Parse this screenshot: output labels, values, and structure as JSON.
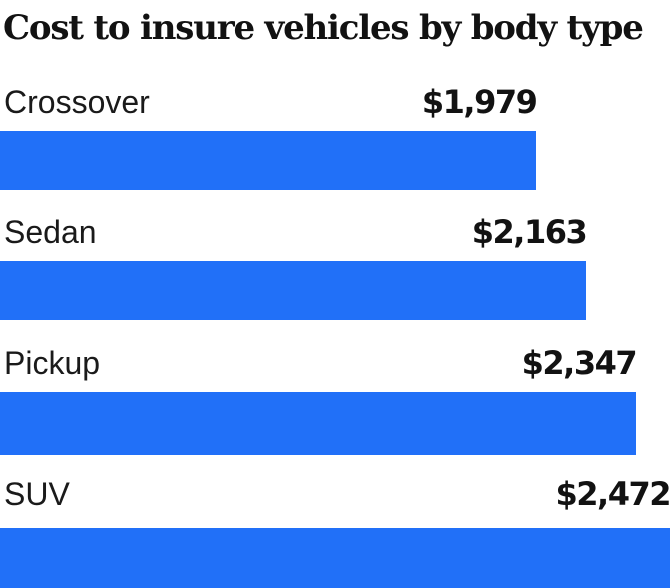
{
  "title": "Cost to insure vehicles by body type",
  "colors": {
    "bar": "#2170f8",
    "title_text": "#121212",
    "label_text": "#1a1a1a",
    "background": "#ffffff"
  },
  "chart_data": {
    "type": "bar",
    "orientation": "horizontal",
    "title": "Cost to insure vehicles by body type",
    "categories": [
      "Crossover",
      "Sedan",
      "Pickup",
      "SUV"
    ],
    "values": [
      1979,
      2163,
      2347,
      2472
    ],
    "display_values": [
      "$1,979",
      "$2,163",
      "$2,347",
      "$2,472"
    ],
    "xlabel": "",
    "ylabel": "",
    "xlim": [
      0,
      2472
    ],
    "value_label_position": "right-aligned-to-bar-end",
    "grid": false,
    "legend": false,
    "bar_color": "#2170f8"
  }
}
